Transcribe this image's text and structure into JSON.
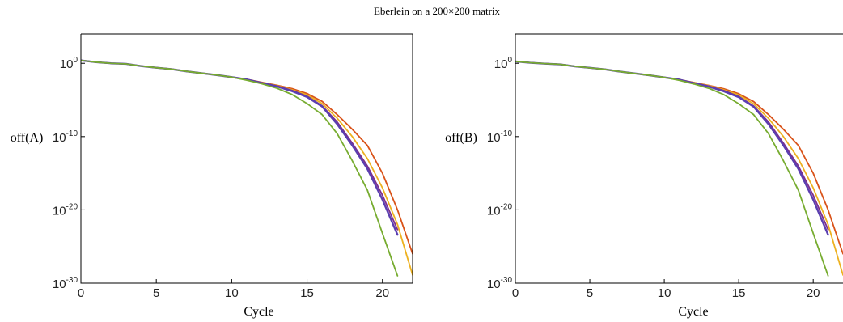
{
  "title": "Eberlein on a 200×200 matrix",
  "series_colors": [
    "#D95319",
    "#EDB120",
    "#7E2F8E",
    "#5B3FB0",
    "#77AC30"
  ],
  "chart_data": [
    {
      "type": "line",
      "xlabel": "Cycle",
      "ylabel": "off(A)",
      "yscale": "log",
      "xlim": [
        0,
        22
      ],
      "ylim": [
        1e-30,
        10000.0
      ],
      "xticks": [
        "0",
        "5",
        "10",
        "15",
        "20"
      ],
      "yticks": [
        {
          "base": "10",
          "exp": "0"
        },
        {
          "base": "10",
          "exp": "-10"
        },
        {
          "base": "10",
          "exp": "-20"
        },
        {
          "base": "10",
          "exp": "-30"
        }
      ],
      "grid": false,
      "series": [
        {
          "color": "#D95319",
          "x": [
            0,
            1,
            2,
            3,
            4,
            5,
            6,
            7,
            8,
            9,
            10,
            11,
            12,
            13,
            14,
            15,
            16,
            17,
            18,
            19,
            20,
            21,
            22
          ],
          "y": [
            2.5,
            1.43,
            1.0,
            0.83,
            0.42,
            0.25,
            0.16,
            0.08,
            0.045,
            0.025,
            0.013,
            0.0063,
            0.0025,
            0.001,
            0.00035,
            7.5e-05,
            6.3e-06,
            1e-07,
            1e-09,
            6.3e-12,
            1e-15,
            1e-20,
            1e-26
          ]
        },
        {
          "color": "#EDB120",
          "x": [
            0,
            1,
            2,
            3,
            4,
            5,
            6,
            7,
            8,
            9,
            10,
            11,
            12,
            13,
            14,
            15,
            16,
            17,
            18,
            19,
            20,
            21,
            22
          ],
          "y": [
            2.5,
            1.43,
            1.0,
            0.83,
            0.42,
            0.25,
            0.16,
            0.08,
            0.045,
            0.025,
            0.013,
            0.0063,
            0.0023,
            0.00089,
            0.00025,
            5e-05,
            3.2e-06,
            3.2e-08,
            1e-10,
            1e-13,
            1e-17,
            1e-22,
            1.3e-29
          ]
        },
        {
          "color": "#7E2F8E",
          "x": [
            0,
            1,
            2,
            3,
            4,
            5,
            6,
            7,
            8,
            9,
            10,
            11,
            12,
            13,
            14,
            15,
            16,
            17,
            18,
            19,
            20,
            21
          ],
          "y": [
            2.5,
            1.43,
            1.0,
            0.83,
            0.42,
            0.25,
            0.16,
            0.08,
            0.045,
            0.025,
            0.013,
            0.0063,
            0.0022,
            0.0008,
            0.0002,
            3.2e-05,
            1.6e-06,
            1e-08,
            1.3e-11,
            1e-14,
            1e-18,
            2e-23
          ]
        },
        {
          "color": "#5B3FB0",
          "x": [
            0,
            1,
            2,
            3,
            4,
            5,
            6,
            7,
            8,
            9,
            10,
            11,
            12,
            13,
            14,
            15,
            16,
            17,
            18,
            19,
            20,
            21
          ],
          "y": [
            2.5,
            1.43,
            1.0,
            0.83,
            0.42,
            0.25,
            0.16,
            0.08,
            0.045,
            0.025,
            0.013,
            0.0063,
            0.002,
            0.0007,
            0.00016,
            2.5e-05,
            1.3e-06,
            5e-09,
            6.3e-12,
            4e-15,
            2.5e-19,
            4e-24
          ]
        },
        {
          "color": "#77AC30",
          "x": [
            0,
            1,
            2,
            3,
            4,
            5,
            6,
            7,
            8,
            9,
            10,
            11,
            12,
            13,
            14,
            15,
            16,
            17,
            18,
            19,
            20,
            21
          ],
          "y": [
            2.5,
            1.43,
            1.0,
            0.83,
            0.42,
            0.25,
            0.16,
            0.08,
            0.045,
            0.025,
            0.013,
            0.005,
            0.0016,
            0.0004,
            5.6e-05,
            3.2e-06,
            1e-07,
            2.5e-10,
            5e-14,
            5e-18,
            6.3e-24,
            1e-29
          ]
        }
      ]
    },
    {
      "type": "line",
      "xlabel": "Cycle",
      "ylabel": "off(B)",
      "yscale": "log",
      "xlim": [
        0,
        22
      ],
      "ylim": [
        1e-30,
        10000.0
      ],
      "xticks": [
        "0",
        "5",
        "10",
        "15",
        "20"
      ],
      "yticks": [
        {
          "base": "10",
          "exp": "0"
        },
        {
          "base": "10",
          "exp": "-10"
        },
        {
          "base": "10",
          "exp": "-20"
        },
        {
          "base": "10",
          "exp": "-30"
        }
      ],
      "grid": false,
      "series": [
        {
          "color": "#D95319",
          "x": [
            0,
            1,
            2,
            3,
            4,
            5,
            6,
            7,
            8,
            9,
            10,
            11,
            12,
            13,
            14,
            15,
            16,
            17,
            18,
            19,
            20,
            21,
            22
          ],
          "y": [
            1.8,
            1.2,
            0.9,
            0.72,
            0.38,
            0.24,
            0.15,
            0.075,
            0.042,
            0.023,
            0.012,
            0.006,
            0.0024,
            0.00095,
            0.00033,
            7e-05,
            6e-06,
            1e-07,
            1e-09,
            6.3e-12,
            1e-15,
            1e-20,
            1e-26
          ]
        },
        {
          "color": "#EDB120",
          "x": [
            0,
            1,
            2,
            3,
            4,
            5,
            6,
            7,
            8,
            9,
            10,
            11,
            12,
            13,
            14,
            15,
            16,
            17,
            18,
            19,
            20,
            21,
            22
          ],
          "y": [
            1.8,
            1.2,
            0.9,
            0.72,
            0.38,
            0.24,
            0.15,
            0.075,
            0.042,
            0.023,
            0.012,
            0.006,
            0.0022,
            0.00085,
            0.00024,
            4.8e-05,
            3e-06,
            3e-08,
            1e-10,
            1e-13,
            1e-17,
            1e-22,
            1.3e-29
          ]
        },
        {
          "color": "#7E2F8E",
          "x": [
            0,
            1,
            2,
            3,
            4,
            5,
            6,
            7,
            8,
            9,
            10,
            11,
            12,
            13,
            14,
            15,
            16,
            17,
            18,
            19,
            20,
            21
          ],
          "y": [
            1.8,
            1.2,
            0.9,
            0.72,
            0.38,
            0.24,
            0.15,
            0.075,
            0.042,
            0.023,
            0.012,
            0.006,
            0.0021,
            0.00076,
            0.00019,
            3e-05,
            1.5e-06,
            1e-08,
            1.3e-11,
            1e-14,
            1e-18,
            2e-23
          ]
        },
        {
          "color": "#5B3FB0",
          "x": [
            0,
            1,
            2,
            3,
            4,
            5,
            6,
            7,
            8,
            9,
            10,
            11,
            12,
            13,
            14,
            15,
            16,
            17,
            18,
            19,
            20,
            21
          ],
          "y": [
            1.8,
            1.2,
            0.9,
            0.72,
            0.38,
            0.24,
            0.15,
            0.075,
            0.042,
            0.023,
            0.012,
            0.006,
            0.0019,
            0.00066,
            0.00015,
            2.4e-05,
            1.2e-06,
            5e-09,
            6.3e-12,
            4e-15,
            2.5e-19,
            4e-24
          ]
        },
        {
          "color": "#77AC30",
          "x": [
            0,
            1,
            2,
            3,
            4,
            5,
            6,
            7,
            8,
            9,
            10,
            11,
            12,
            13,
            14,
            15,
            16,
            17,
            18,
            19,
            20,
            21
          ],
          "y": [
            1.8,
            1.2,
            0.9,
            0.72,
            0.38,
            0.24,
            0.15,
            0.075,
            0.042,
            0.023,
            0.012,
            0.0048,
            0.0015,
            0.00038,
            5.3e-05,
            3e-06,
            1e-07,
            2.5e-10,
            5e-14,
            5e-18,
            6.3e-24,
            1e-29
          ]
        }
      ]
    }
  ]
}
